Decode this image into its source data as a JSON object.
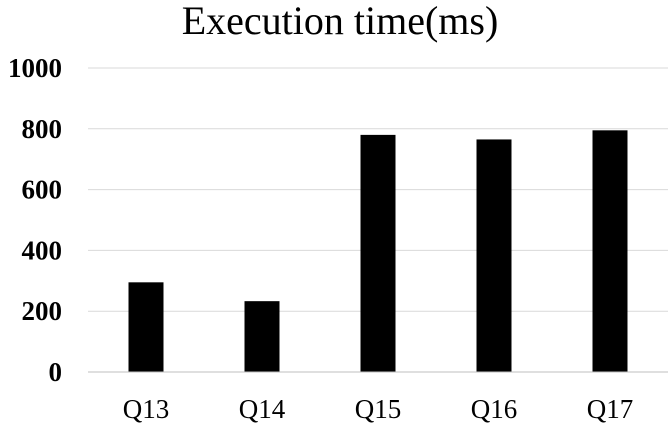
{
  "chart_data": {
    "type": "bar",
    "title": "Execution time(ms)",
    "categories": [
      "Q13",
      "Q14",
      "Q15",
      "Q16",
      "Q17"
    ],
    "values": [
      295,
      233,
      780,
      765,
      795
    ],
    "ylim": [
      0,
      1000
    ],
    "yticks": [
      "0",
      "200",
      "400",
      "600",
      "800",
      "1000"
    ],
    "grid": true,
    "bar_color": "#000000",
    "grid_color": "#d9d9d9"
  }
}
